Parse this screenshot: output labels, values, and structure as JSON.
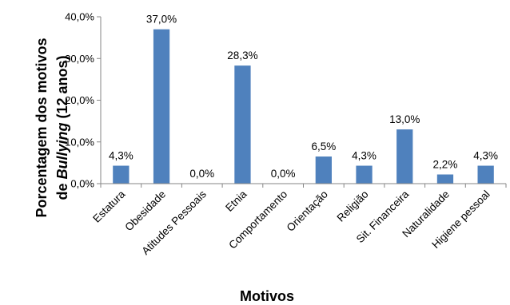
{
  "chart_data": {
    "type": "bar",
    "categories": [
      "Estatura",
      "Obesidade",
      "Atitudes Pessoais",
      "Etnia",
      "Comportamento",
      "Orientação",
      "Religião",
      "Sit. Financeira",
      "Naturalidade",
      "Higiene pessoal"
    ],
    "values": [
      4.3,
      37.0,
      0.0,
      28.3,
      0.0,
      6.5,
      4.3,
      13.0,
      2.2,
      4.3
    ],
    "data_labels": [
      "4,3%",
      "37,0%",
      "0,0%",
      "28,3%",
      "0,0%",
      "6,5%",
      "4,3%",
      "13,0%",
      "2,2%",
      "4,3%"
    ],
    "ylim": [
      0,
      40
    ],
    "yticks": [
      0,
      10,
      20,
      30,
      40
    ],
    "ytick_labels": [
      "0,0%",
      "10,0%",
      "20,0%",
      "30,0%",
      "40,0%"
    ],
    "xlabel": "Motivos",
    "ylabel_line1": "Porcentagem dos motivos",
    "ylabel_line2_prefix": "de ",
    "ylabel_line2_italic": "Bullying",
    "ylabel_line2_suffix": " (12 anos)",
    "grid": false,
    "bar_color": "#4f81bd"
  }
}
